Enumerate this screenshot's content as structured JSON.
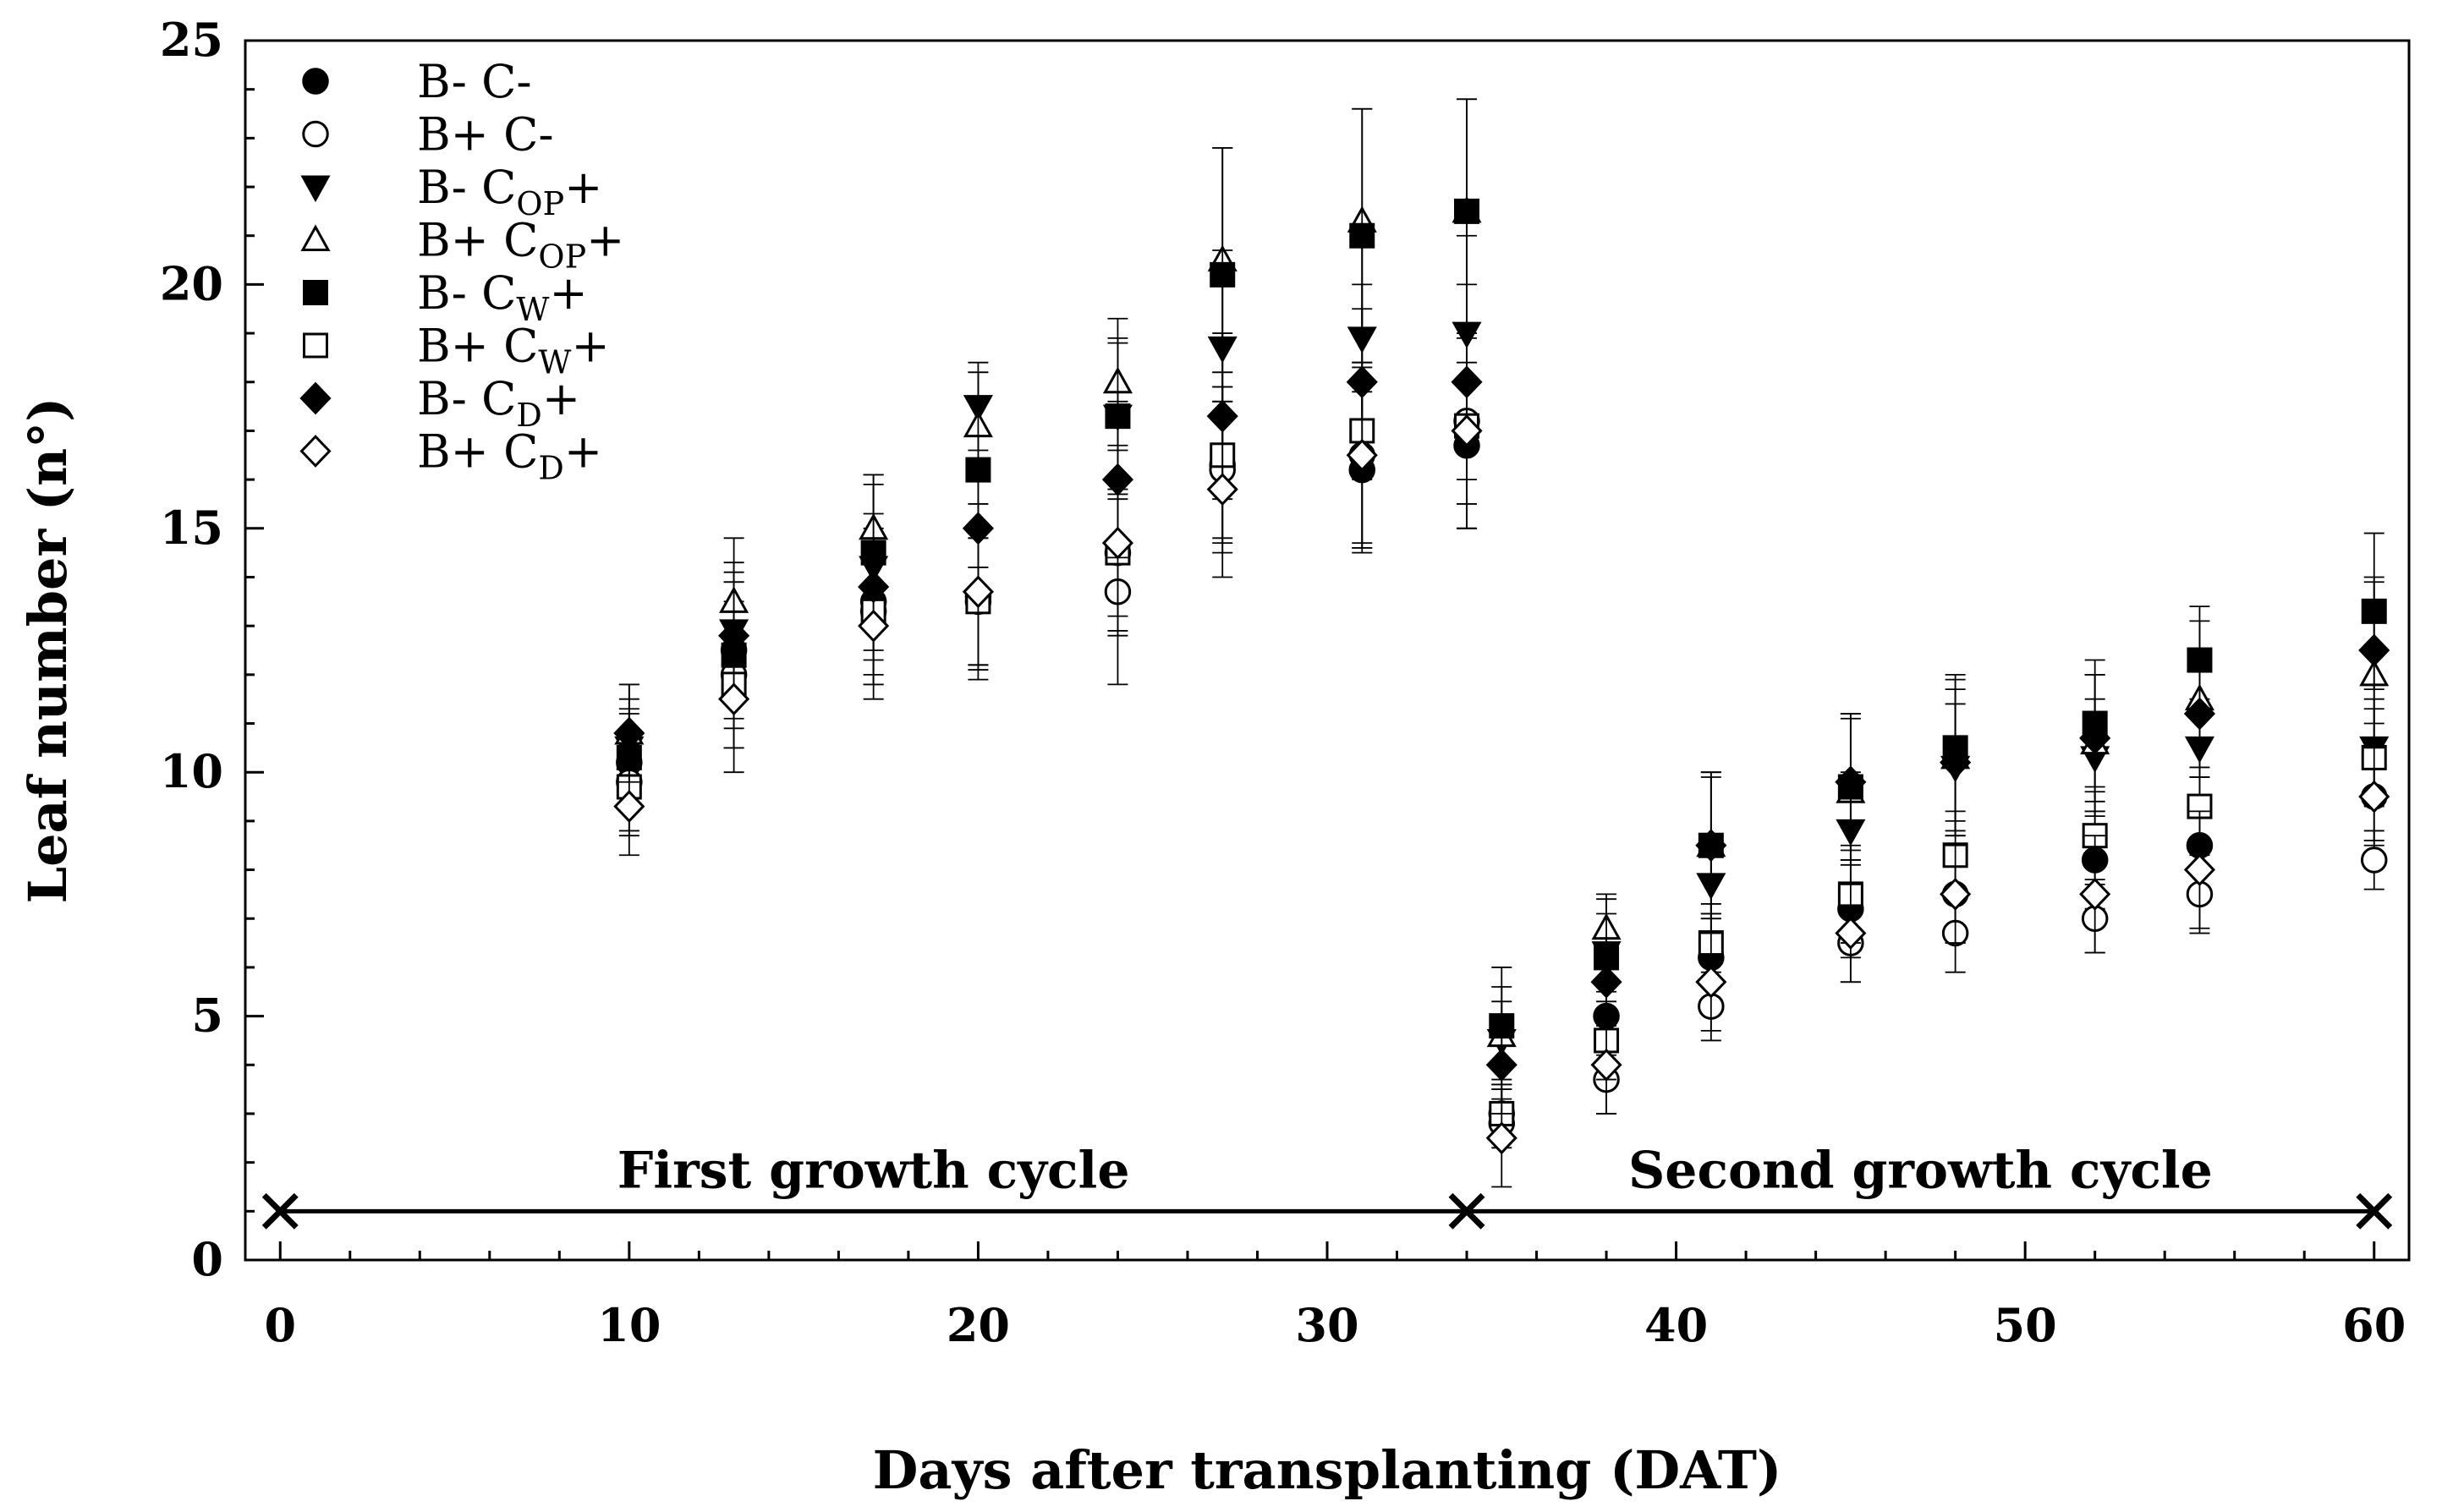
{
  "chart_data": {
    "type": "scatter",
    "title": "",
    "xlabel": "Days after transplanting (DAT)",
    "ylabel": "Leaf number (n°)",
    "xlim": [
      -1,
      61
    ],
    "ylim": [
      0,
      25
    ],
    "xticks": [
      0,
      10,
      20,
      30,
      40,
      50,
      60
    ],
    "yticks": [
      0,
      5,
      10,
      15,
      20,
      25
    ],
    "grid": false,
    "legend_position": "top-left",
    "series": [
      {
        "name": "B- C-",
        "name_main": "B- C",
        "name_sub": "",
        "name_tail": "-",
        "marker": "circle",
        "filled": true,
        "x": [
          10,
          13,
          17,
          20,
          24,
          27,
          31,
          34,
          35,
          38,
          41,
          45,
          48,
          52,
          55,
          60
        ],
        "y": [
          10.2,
          12.5,
          13.5,
          13.5,
          14.5,
          16.3,
          16.2,
          16.7,
          3.0,
          5.0,
          6.2,
          7.2,
          7.5,
          8.2,
          8.5,
          9.5
        ],
        "err": [
          1.0,
          1.4,
          1.5,
          1.3,
          1.6,
          1.6,
          1.6,
          1.7,
          0.5,
          0.8,
          0.9,
          1.0,
          1.0,
          1.0,
          1.0,
          0.9
        ]
      },
      {
        "name": "B+ C-",
        "name_main": "B+ C",
        "name_sub": "",
        "name_tail": "-",
        "marker": "circle",
        "filled": false,
        "x": [
          10,
          13,
          17,
          20,
          24,
          27,
          31,
          34,
          35,
          38,
          41,
          45,
          48,
          52,
          55,
          60
        ],
        "y": [
          9.8,
          12.0,
          13.3,
          13.6,
          13.7,
          16.2,
          16.5,
          17.2,
          2.8,
          3.7,
          5.2,
          6.5,
          6.7,
          7.0,
          7.5,
          8.2
        ],
        "err": [
          1.0,
          1.5,
          1.5,
          1.5,
          1.9,
          1.7,
          1.8,
          1.7,
          0.5,
          0.7,
          0.7,
          0.8,
          0.8,
          0.7,
          0.8,
          0.6
        ]
      },
      {
        "name": "B- COP+",
        "name_main": "B- C",
        "name_sub": "OP",
        "name_tail": "+",
        "marker": "triangle-down",
        "filled": true,
        "x": [
          10,
          13,
          17,
          20,
          24,
          27,
          31,
          34,
          35,
          38,
          41,
          45,
          48,
          52,
          55,
          60
        ],
        "y": [
          10.5,
          12.9,
          14.2,
          17.5,
          17.3,
          18.7,
          18.9,
          19.0,
          4.5,
          6.3,
          7.7,
          8.8,
          10.1,
          10.3,
          10.5,
          10.5
        ],
        "err": [
          1.0,
          1.4,
          1.7,
          0.9,
          1.5,
          2.0,
          2.0,
          2.0,
          0.8,
          0.8,
          1.0,
          1.2,
          1.3,
          1.2,
          1.0,
          1.0
        ]
      },
      {
        "name": "B+ COP+",
        "name_main": "B+ C",
        "name_sub": "OP",
        "name_tail": "+",
        "marker": "triangle-up",
        "filled": false,
        "x": [
          10,
          13,
          17,
          20,
          24,
          27,
          31,
          34,
          35,
          38,
          41,
          45,
          48,
          52,
          55,
          60
        ],
        "y": [
          10.8,
          13.5,
          15.0,
          17.1,
          18.0,
          20.5,
          21.3,
          21.5,
          4.6,
          6.8,
          8.5,
          9.6,
          10.3,
          10.6,
          11.5,
          12.0
        ],
        "err": [
          1.0,
          1.3,
          1.1,
          1.1,
          1.3,
          2.3,
          2.3,
          2.3,
          1.0,
          0.7,
          1.5,
          1.5,
          1.6,
          1.4,
          1.6,
          1.9
        ]
      },
      {
        "name": "B- CW+",
        "name_main": "B- C",
        "name_sub": "W",
        "name_tail": "+",
        "marker": "square",
        "filled": true,
        "x": [
          10,
          13,
          17,
          20,
          24,
          27,
          31,
          34,
          35,
          38,
          41,
          45,
          48,
          52,
          55,
          60
        ],
        "y": [
          10.3,
          12.4,
          14.5,
          16.2,
          17.3,
          20.2,
          21.0,
          21.5,
          4.8,
          6.2,
          8.5,
          9.7,
          10.5,
          11.0,
          12.3,
          13.3
        ],
        "err": [
          1.0,
          1.5,
          1.6,
          2.0,
          1.6,
          2.6,
          2.6,
          2.3,
          1.2,
          1.2,
          1.5,
          1.5,
          1.5,
          1.3,
          1.1,
          1.6
        ]
      },
      {
        "name": "B+ CW+",
        "name_main": "B+ C",
        "name_sub": "W",
        "name_tail": "+",
        "marker": "square",
        "filled": false,
        "x": [
          10,
          13,
          17,
          20,
          24,
          27,
          31,
          34,
          35,
          38,
          41,
          45,
          48,
          52,
          55,
          60
        ],
        "y": [
          9.7,
          11.8,
          13.3,
          13.5,
          14.5,
          16.5,
          17.0,
          17.1,
          3.0,
          4.5,
          6.5,
          7.5,
          8.3,
          8.7,
          9.3,
          10.3
        ],
        "err": [
          1.0,
          1.3,
          1.5,
          1.3,
          1.3,
          1.7,
          2.5,
          2.1,
          0.6,
          0.8,
          0.8,
          1.0,
          0.9,
          0.9,
          0.8,
          1.0
        ]
      },
      {
        "name": "B- CD+",
        "name_main": "B- C",
        "name_sub": "D",
        "name_tail": "+",
        "marker": "diamond",
        "filled": true,
        "x": [
          10,
          13,
          17,
          20,
          24,
          27,
          31,
          34,
          35,
          38,
          41,
          45,
          48,
          52,
          55,
          60
        ],
        "y": [
          10.8,
          12.8,
          13.8,
          15.0,
          16.0,
          17.3,
          18.0,
          18.0,
          4.0,
          5.7,
          8.5,
          9.8,
          10.2,
          10.7,
          11.2,
          12.5
        ],
        "err": [
          1.0,
          1.3,
          1.5,
          1.3,
          1.6,
          1.7,
          2.0,
          2.0,
          1.0,
          0.9,
          1.4,
          1.4,
          1.5,
          1.3,
          1.3,
          1.5
        ]
      },
      {
        "name": "B+ CD+",
        "name_main": "B+ C",
        "name_sub": "D",
        "name_tail": "+",
        "marker": "diamond",
        "filled": false,
        "x": [
          10,
          13,
          17,
          20,
          24,
          27,
          31,
          34,
          35,
          38,
          41,
          45,
          48,
          52,
          55,
          60
        ],
        "y": [
          9.3,
          11.5,
          13.0,
          13.7,
          14.7,
          15.8,
          16.5,
          17.0,
          2.5,
          4.0,
          5.7,
          6.7,
          7.5,
          7.5,
          8.0,
          9.5
        ],
        "err": [
          1.0,
          1.5,
          1.5,
          1.8,
          1.9,
          1.8,
          1.9,
          2.0,
          1.0,
          1.0,
          1.0,
          1.0,
          1.0,
          1.2,
          1.2,
          1.0
        ]
      }
    ],
    "annotations": {
      "timeline": {
        "y": 1,
        "x_marks": [
          0,
          34,
          60
        ]
      },
      "cycle_labels": [
        {
          "text": "First growth cycle",
          "x": 17
        },
        {
          "text": "Second growth cycle",
          "x": 47
        }
      ]
    }
  }
}
